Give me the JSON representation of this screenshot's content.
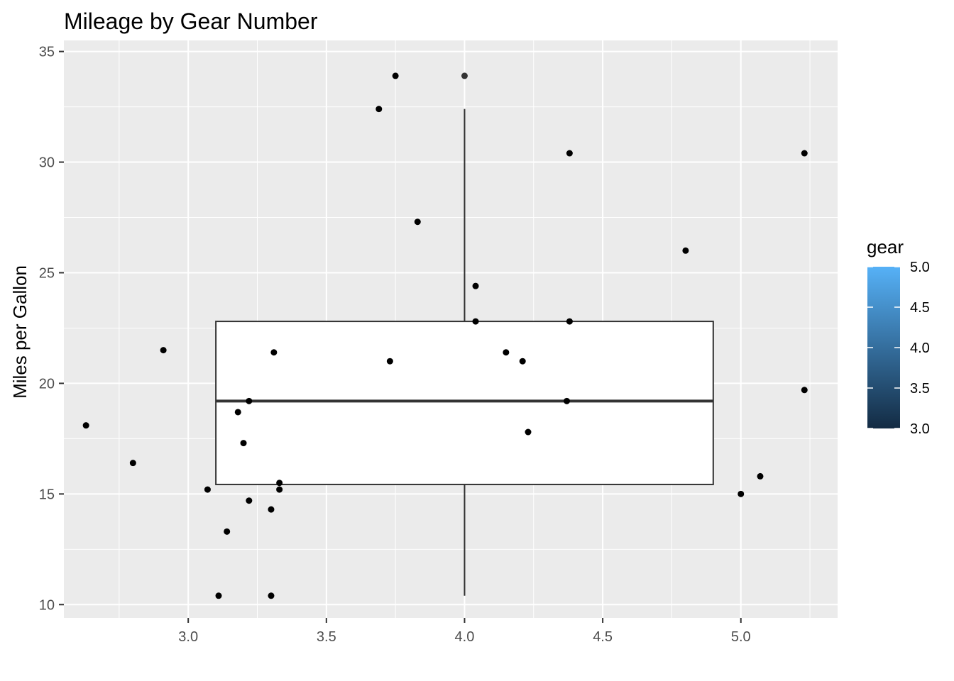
{
  "chart_data": {
    "type": "scatter",
    "overlay": "boxplot",
    "title": "Mileage by Gear Number",
    "xlabel": "",
    "ylabel": "Miles per Gallon",
    "xlim": [
      2.55,
      5.35
    ],
    "ylim": [
      9.4,
      35.5
    ],
    "x_ticks": [
      3.0,
      3.5,
      4.0,
      4.5,
      5.0
    ],
    "x_tick_labels": [
      "3.0",
      "3.5",
      "4.0",
      "4.5",
      "5.0"
    ],
    "y_ticks": [
      10,
      15,
      20,
      25,
      30,
      35
    ],
    "y_tick_labels": [
      "10",
      "15",
      "20",
      "25",
      "30",
      "35"
    ],
    "grid": true,
    "panel_background": "#ebebeb",
    "boxplot": {
      "x_left": 3.1,
      "x_right": 4.9,
      "whisker_x": 4.0,
      "lower_whisker": 10.4,
      "q1": 15.43,
      "median": 19.2,
      "q3": 22.8,
      "upper_whisker": 32.4,
      "outliers": [
        33.9
      ]
    },
    "points": [
      {
        "x": 2.63,
        "y": 18.1
      },
      {
        "x": 2.8,
        "y": 16.4
      },
      {
        "x": 2.91,
        "y": 21.5
      },
      {
        "x": 3.07,
        "y": 15.2
      },
      {
        "x": 3.11,
        "y": 10.4
      },
      {
        "x": 3.14,
        "y": 13.3
      },
      {
        "x": 3.18,
        "y": 18.7
      },
      {
        "x": 3.2,
        "y": 17.3
      },
      {
        "x": 3.22,
        "y": 14.7
      },
      {
        "x": 3.22,
        "y": 19.2
      },
      {
        "x": 3.3,
        "y": 14.3
      },
      {
        "x": 3.3,
        "y": 10.4
      },
      {
        "x": 3.31,
        "y": 21.4
      },
      {
        "x": 3.33,
        "y": 15.2
      },
      {
        "x": 3.33,
        "y": 15.5
      },
      {
        "x": 3.69,
        "y": 32.4
      },
      {
        "x": 3.73,
        "y": 21.0
      },
      {
        "x": 3.75,
        "y": 33.9
      },
      {
        "x": 3.83,
        "y": 27.3
      },
      {
        "x": 4.04,
        "y": 22.8
      },
      {
        "x": 4.04,
        "y": 24.4
      },
      {
        "x": 4.15,
        "y": 21.4
      },
      {
        "x": 4.21,
        "y": 21.0
      },
      {
        "x": 4.23,
        "y": 17.8
      },
      {
        "x": 4.37,
        "y": 19.2
      },
      {
        "x": 4.38,
        "y": 30.4
      },
      {
        "x": 4.38,
        "y": 22.8
      },
      {
        "x": 4.8,
        "y": 26.0
      },
      {
        "x": 5.0,
        "y": 15.0
      },
      {
        "x": 5.07,
        "y": 15.8
      },
      {
        "x": 5.23,
        "y": 19.7
      },
      {
        "x": 5.23,
        "y": 30.4
      }
    ],
    "point_color": "#000000",
    "legend": {
      "title": "gear",
      "placement": "right",
      "type": "colorbar",
      "min": 3.0,
      "max": 5.0,
      "low_color": "#132b43",
      "high_color": "#56b1f7",
      "labels": [
        "5.0",
        "4.5",
        "4.0",
        "3.5",
        "3.0"
      ],
      "values": [
        5.0,
        4.5,
        4.0,
        3.5,
        3.0
      ]
    }
  }
}
